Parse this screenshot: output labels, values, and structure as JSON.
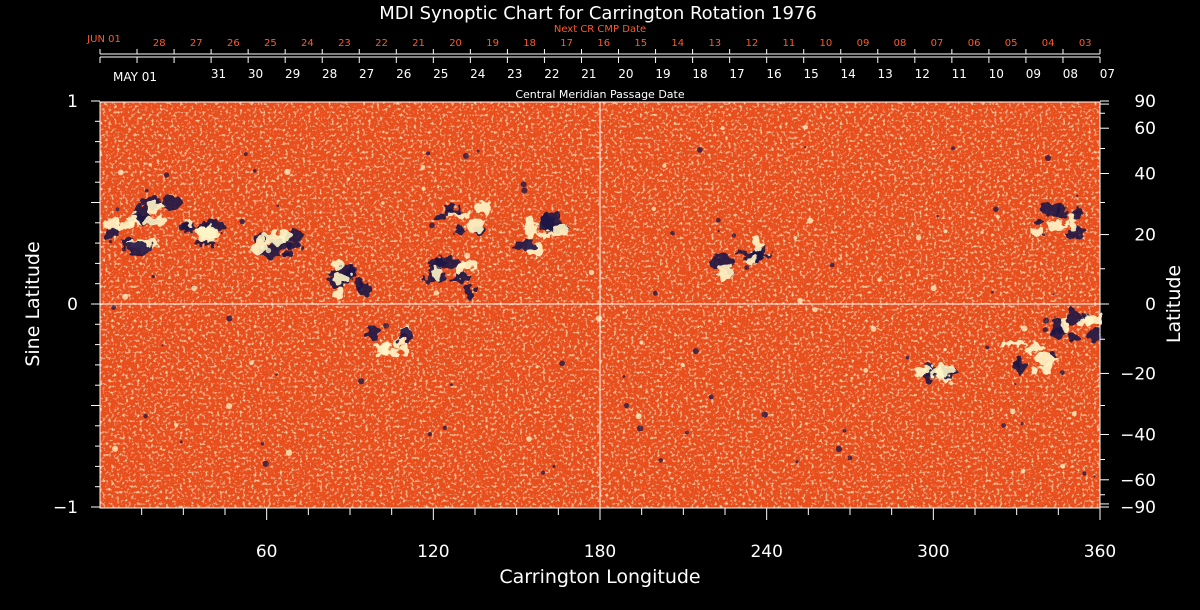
{
  "chart_data": {
    "type": "heatmap",
    "title": "MDI Synoptic Chart for Carrington Rotation 1976",
    "xlabel": "Carrington Longitude",
    "ylabel_left": "Sine Latitude",
    "ylabel_right": "Latitude",
    "xlim": [
      0,
      360
    ],
    "ylim": [
      -1,
      1
    ],
    "x_ticks": [
      60,
      120,
      180,
      240,
      300,
      360
    ],
    "y_left_ticks": [
      {
        "value": 1,
        "label": "1"
      },
      {
        "value": 0,
        "label": "0"
      },
      {
        "value": -1,
        "label": "−1"
      }
    ],
    "y_right_ticks": [
      90,
      60,
      40,
      20,
      0,
      -20,
      -40,
      -60,
      -90
    ],
    "y_right_tick_labels": [
      "90",
      "60",
      "40",
      "20",
      "0",
      "−20",
      "−40",
      "−60",
      "−90"
    ],
    "next_cmp": {
      "label": "Next CR CMP Date",
      "month_label": "JUN 01",
      "dates": [
        "28",
        "27",
        "26",
        "25",
        "24",
        "23",
        "22",
        "21",
        "20",
        "19",
        "18",
        "17",
        "16",
        "15",
        "14",
        "13",
        "12",
        "11",
        "10",
        "09",
        "08",
        "07",
        "06",
        "05",
        "04",
        "03"
      ]
    },
    "current_cmp": {
      "label": "Central Meridian Passage Date",
      "month_label": "MAY 01",
      "dates": [
        "31",
        "30",
        "29",
        "28",
        "27",
        "26",
        "25",
        "24",
        "23",
        "22",
        "21",
        "20",
        "19",
        "18",
        "17",
        "16",
        "15",
        "14",
        "13",
        "12",
        "11",
        "10",
        "09",
        "08",
        "07"
      ]
    },
    "colors": {
      "background": "#000000",
      "map_base": "#e8501a",
      "positive_polarity": "#fff6c8",
      "negative_polarity": "#1c1445",
      "next_cmp_text": "#ff5a2a",
      "axis": "#ffffff"
    },
    "active_regions": [
      {
        "lon": 10,
        "sinlat": 0.34,
        "polarity": "mixed"
      },
      {
        "lon": 18,
        "sinlat": 0.45,
        "polarity": "negative"
      },
      {
        "lon": 38,
        "sinlat": 0.35,
        "polarity": "negative"
      },
      {
        "lon": 65,
        "sinlat": 0.28,
        "polarity": "negative"
      },
      {
        "lon": 90,
        "sinlat": 0.12,
        "polarity": "negative"
      },
      {
        "lon": 105,
        "sinlat": -0.18,
        "polarity": "positive"
      },
      {
        "lon": 128,
        "sinlat": 0.13,
        "polarity": "negative"
      },
      {
        "lon": 130,
        "sinlat": 0.42,
        "polarity": "negative"
      },
      {
        "lon": 160,
        "sinlat": 0.34,
        "polarity": "mixed"
      },
      {
        "lon": 230,
        "sinlat": 0.22,
        "polarity": "negative"
      },
      {
        "lon": 300,
        "sinlat": -0.36,
        "polarity": "mixed"
      },
      {
        "lon": 335,
        "sinlat": -0.27,
        "polarity": "positive"
      },
      {
        "lon": 345,
        "sinlat": 0.42,
        "polarity": "negative"
      },
      {
        "lon": 350,
        "sinlat": -0.12,
        "polarity": "negative"
      }
    ]
  }
}
